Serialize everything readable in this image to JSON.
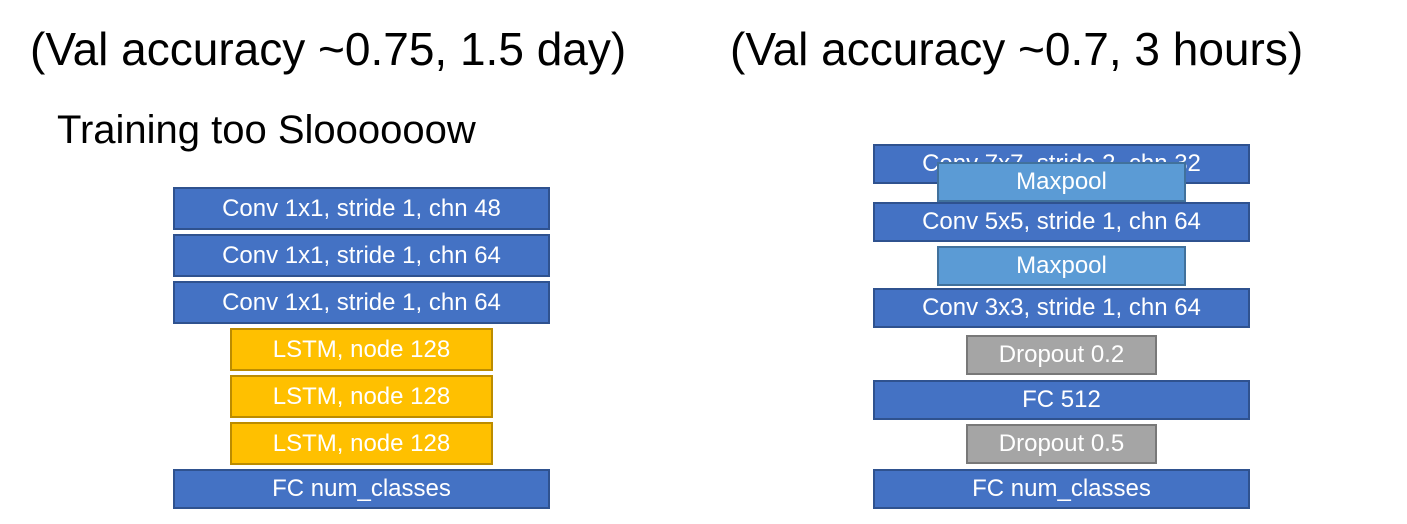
{
  "left": {
    "heading": "(Val accuracy ~0.75, 1.5 day)",
    "note": "Training too Sloooooow",
    "blocks": [
      {
        "label": "Conv 1x1, stride 1, chn 48",
        "type": "conv",
        "color": "#4472C4"
      },
      {
        "label": "Conv 1x1, stride 1, chn 64",
        "type": "conv",
        "color": "#4472C4"
      },
      {
        "label": "Conv 1x1, stride 1, chn 64",
        "type": "conv",
        "color": "#4472C4"
      },
      {
        "label": "LSTM, node 128",
        "type": "lstm",
        "color": "#FFC000"
      },
      {
        "label": "LSTM, node 128",
        "type": "lstm",
        "color": "#FFC000"
      },
      {
        "label": "LSTM, node 128",
        "type": "lstm",
        "color": "#FFC000"
      },
      {
        "label": "FC num_classes",
        "type": "fc",
        "color": "#4472C4"
      }
    ]
  },
  "right": {
    "heading": "(Val accuracy ~0.7, 3 hours)",
    "blocks": [
      {
        "label": "Conv 7x7, stride 2, chn 32",
        "type": "conv",
        "color": "#4472C4"
      },
      {
        "label": "Maxpool",
        "type": "maxpool",
        "color": "#5B9BD5"
      },
      {
        "label": "Conv 5x5, stride 1, chn 64",
        "type": "conv",
        "color": "#4472C4"
      },
      {
        "label": "Maxpool",
        "type": "maxpool",
        "color": "#5B9BD5"
      },
      {
        "label": "Conv 3x3, stride 1, chn 64",
        "type": "conv",
        "color": "#4472C4"
      },
      {
        "label": "Dropout 0.2",
        "type": "dropout",
        "color": "#A5A5A5"
      },
      {
        "label": "FC 512",
        "type": "fc",
        "color": "#4472C4"
      },
      {
        "label": "Dropout 0.5",
        "type": "dropout",
        "color": "#A5A5A5"
      },
      {
        "label": "FC num_classes",
        "type": "fc",
        "color": "#4472C4"
      }
    ]
  }
}
